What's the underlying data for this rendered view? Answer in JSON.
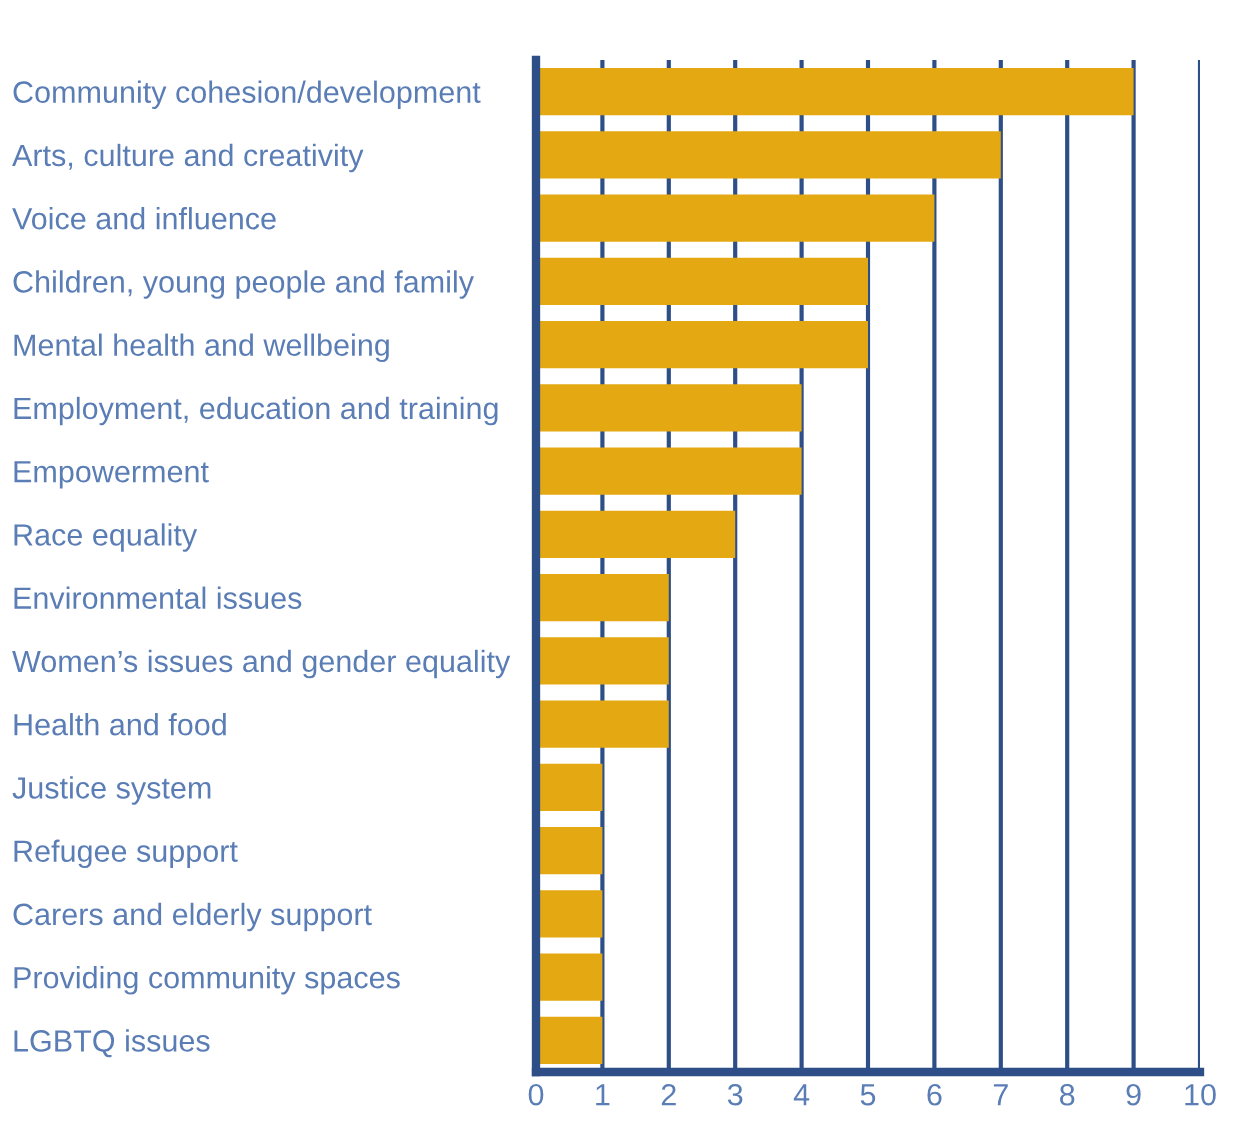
{
  "chart_data": {
    "type": "bar",
    "orientation": "horizontal",
    "categories": [
      "Community cohesion/development",
      "Arts, culture and creativity",
      "Voice and influence",
      "Children, young people and family",
      "Mental health and wellbeing",
      "Employment, education and training",
      "Empowerment",
      "Race equality",
      "Environmental issues",
      "Women’s issues and gender equality",
      "Health and food",
      "Justice system",
      "Refugee support",
      "Carers and elderly support",
      "Providing community spaces",
      "LGBTQ issues"
    ],
    "values": [
      9,
      7,
      6,
      5,
      5,
      4,
      4,
      3,
      2,
      2,
      2,
      1,
      1,
      1,
      1,
      1
    ],
    "color": "#e3a812",
    "xlim": [
      0,
      10
    ],
    "xticks": [
      0,
      1,
      2,
      3,
      4,
      5,
      6,
      7,
      8,
      9,
      10
    ],
    "grid": "x"
  }
}
